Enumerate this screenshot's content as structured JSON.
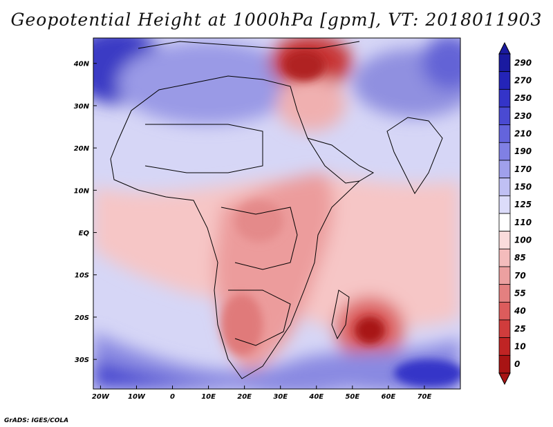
{
  "title": "Geopotential Height at 1000hPa [gpm], VT: 2018011903",
  "credit": "GrADS: IGES/COLA",
  "map": {
    "lon_labels": [
      "20W",
      "10W",
      "0",
      "10E",
      "20E",
      "30E",
      "40E",
      "50E",
      "60E",
      "70E"
    ],
    "lon_values": [
      -20,
      -10,
      0,
      10,
      20,
      30,
      40,
      50,
      60,
      70
    ],
    "lat_labels": [
      "40N",
      "30N",
      "20N",
      "10N",
      "EQ",
      "10S",
      "20S",
      "30S"
    ],
    "lat_values": [
      40,
      30,
      20,
      10,
      0,
      -10,
      -20,
      -30
    ],
    "lon_range": [
      -22,
      80
    ],
    "lat_range": [
      -37,
      46
    ]
  },
  "colorbar": {
    "levels": [
      "290",
      "270",
      "250",
      "230",
      "210",
      "190",
      "170",
      "150",
      "125",
      "110",
      "100",
      "85",
      "70",
      "55",
      "40",
      "25",
      "10",
      "0"
    ],
    "colors": [
      "#1a1aa0",
      "#2424b8",
      "#3434c8",
      "#4a4ad2",
      "#6464dc",
      "#8080e4",
      "#a0a0ec",
      "#c0c0f4",
      "#dcdcfa",
      "#ffffff",
      "#fadcdc",
      "#f4bcbc",
      "#eca0a0",
      "#e48080",
      "#dc5c5c",
      "#d03c3c",
      "#c02424",
      "#a81414"
    ]
  }
}
